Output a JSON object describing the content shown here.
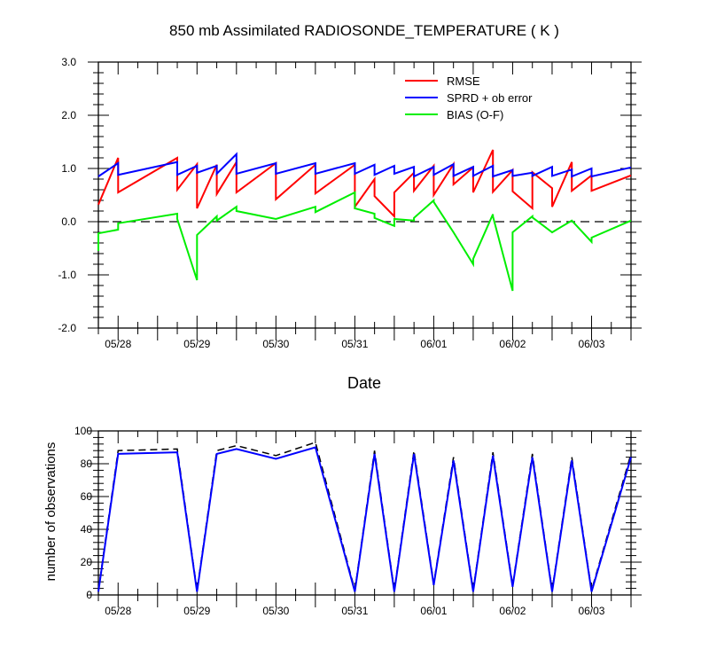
{
  "chart_data": [
    {
      "type": "line",
      "title": "850 mb Assimilated RADIOSONDE_TEMPERATURE ( K )",
      "xlabel": "Date",
      "ylabel": "",
      "ylim": [
        -2.0,
        3.0
      ],
      "yticks": [
        "-2.0",
        "-1.0",
        "0.0",
        "1.0",
        "2.0",
        "3.0"
      ],
      "x_tick_labels": [
        "05/28",
        "05/29",
        "05/30",
        "05/31",
        "06/01",
        "06/02",
        "06/03"
      ],
      "reference_line": 0.0,
      "legend_position": "top-right",
      "series": [
        {
          "name": "RMSE",
          "color": "#ff0000",
          "x": [
            "05/27 18Z",
            "05/28 00Z",
            "05/28 00Z",
            "05/28 18Z",
            "05/28 18Z",
            "05/29 00Z",
            "05/29 00Z",
            "05/29 06Z",
            "05/29 06Z",
            "05/29 12Z",
            "05/29 12Z",
            "05/30 00Z",
            "05/30 00Z",
            "05/30 12Z",
            "05/30 12Z",
            "05/31 00Z",
            "05/31 00Z",
            "05/31 06Z",
            "05/31 06Z",
            "05/31 12Z",
            "05/31 12Z",
            "05/31 18Z",
            "05/31 18Z",
            "06/01 00Z",
            "06/01 00Z",
            "06/01 06Z",
            "06/01 06Z",
            "06/01 12Z",
            "06/01 12Z",
            "06/01 18Z",
            "06/01 18Z",
            "06/02 00Z",
            "06/02 00Z",
            "06/02 06Z",
            "06/02 06Z",
            "06/02 12Z",
            "06/02 12Z",
            "06/02 18Z",
            "06/02 18Z",
            "06/03 00Z",
            "06/03 00Z",
            "06/03 12Z"
          ],
          "values": [
            0.32,
            1.2,
            0.55,
            1.2,
            0.6,
            1.08,
            0.25,
            1.07,
            0.52,
            1.12,
            0.55,
            1.1,
            0.42,
            1.07,
            0.53,
            1.07,
            0.28,
            0.8,
            0.48,
            0.1,
            0.55,
            0.92,
            0.58,
            1.05,
            0.5,
            1.08,
            0.7,
            1.02,
            0.55,
            1.35,
            0.56,
            0.97,
            0.57,
            0.25,
            0.93,
            0.63,
            0.28,
            1.12,
            0.58,
            0.87,
            0.58,
            0.87
          ]
        },
        {
          "name": "SPRD + ob error",
          "color": "#0000ff",
          "x": [
            "05/27 18Z",
            "05/28 00Z",
            "05/28 00Z",
            "05/28 18Z",
            "05/28 18Z",
            "05/29 00Z",
            "05/29 00Z",
            "05/29 06Z",
            "05/29 06Z",
            "05/29 12Z",
            "05/29 12Z",
            "05/30 00Z",
            "05/30 00Z",
            "05/30 12Z",
            "05/30 12Z",
            "05/31 00Z",
            "05/31 00Z",
            "05/31 06Z",
            "05/31 06Z",
            "05/31 12Z",
            "05/31 12Z",
            "05/31 18Z",
            "05/31 18Z",
            "06/01 00Z",
            "06/01 00Z",
            "06/01 06Z",
            "06/01 06Z",
            "06/01 12Z",
            "06/01 12Z",
            "06/01 18Z",
            "06/01 18Z",
            "06/02 00Z",
            "06/02 00Z",
            "06/02 06Z",
            "06/02 06Z",
            "06/02 12Z",
            "06/02 12Z",
            "06/02 18Z",
            "06/02 18Z",
            "06/03 00Z",
            "06/03 00Z",
            "06/03 12Z"
          ],
          "values": [
            0.85,
            1.1,
            0.88,
            1.12,
            0.88,
            1.05,
            0.92,
            1.05,
            0.9,
            1.27,
            0.9,
            1.1,
            0.9,
            1.1,
            0.9,
            1.1,
            0.9,
            1.07,
            0.88,
            1.05,
            0.9,
            1.03,
            0.85,
            1.03,
            0.88,
            1.08,
            0.86,
            1.03,
            0.86,
            1.05,
            0.85,
            0.97,
            0.86,
            0.92,
            0.86,
            1.03,
            0.86,
            0.98,
            0.85,
            1.0,
            0.85,
            1.02
          ]
        },
        {
          "name": "BIAS (O-F)",
          "color": "#00ee00",
          "x": [
            "05/27 18Z",
            "05/27 18Z",
            "05/28 00Z",
            "05/28 00Z",
            "05/28 18Z",
            "05/28 18Z",
            "05/29 00Z",
            "05/29 00Z",
            "05/29 06Z",
            "05/29 06Z",
            "05/29 12Z",
            "05/29 12Z",
            "05/30 00Z",
            "05/30 00Z",
            "05/30 12Z",
            "05/30 12Z",
            "05/31 00Z",
            "05/31 00Z",
            "05/31 06Z",
            "05/31 06Z",
            "05/31 12Z",
            "05/31 12Z",
            "05/31 18Z",
            "05/31 18Z",
            "06/01 00Z",
            "06/01 00Z",
            "06/01 06Z",
            "06/01 06Z",
            "06/01 12Z",
            "06/01 12Z",
            "06/01 18Z",
            "06/01 18Z",
            "06/02 00Z",
            "06/02 00Z",
            "06/02 06Z",
            "06/02 06Z",
            "06/02 12Z",
            "06/02 12Z",
            "06/02 18Z",
            "06/02 18Z",
            "06/03 00Z",
            "06/03 00Z",
            "06/03 12Z"
          ],
          "values": [
            -0.55,
            -0.22,
            -0.15,
            -0.03,
            0.15,
            0.05,
            -1.1,
            -0.25,
            0.1,
            0.02,
            0.28,
            0.2,
            0.05,
            0.05,
            0.28,
            0.18,
            0.55,
            0.25,
            0.15,
            0.07,
            -0.08,
            0.05,
            0.02,
            0.07,
            0.4,
            0.37,
            -0.2,
            -0.2,
            -0.8,
            -0.7,
            0.14,
            0.1,
            -1.3,
            -0.2,
            0.1,
            0.08,
            -0.2,
            -0.2,
            0.02,
            0.02,
            -0.38,
            -0.3,
            0.02
          ]
        }
      ]
    },
    {
      "type": "line",
      "title": "",
      "xlabel": "",
      "ylabel": "number of observations",
      "ylim": [
        0,
        100
      ],
      "yticks": [
        "0",
        "20",
        "40",
        "60",
        "80",
        "100"
      ],
      "x_tick_labels": [
        "05/28",
        "05/29",
        "05/30",
        "05/31",
        "06/01",
        "06/02",
        "06/03"
      ],
      "series": [
        {
          "name": "",
          "color": "#000000",
          "dash": true,
          "x": [
            "05/27 18Z",
            "05/28 00Z",
            "05/28 18Z",
            "05/29 00Z",
            "05/29 06Z",
            "05/29 12Z",
            "05/30 00Z",
            "05/30 12Z",
            "05/31 00Z",
            "05/31 06Z",
            "05/31 12Z",
            "05/31 18Z",
            "06/01 00Z",
            "06/01 06Z",
            "06/01 12Z",
            "06/01 18Z",
            "06/02 00Z",
            "06/02 06Z",
            "06/02 12Z",
            "06/02 18Z",
            "06/03 00Z",
            "06/03 12Z"
          ],
          "values": [
            3,
            88,
            89,
            3,
            88,
            91,
            85,
            93,
            3,
            88,
            3,
            88,
            7,
            84,
            3,
            87,
            6,
            86,
            3,
            84,
            3,
            86
          ]
        },
        {
          "name": "",
          "color": "#0000ff",
          "dash": false,
          "x": [
            "05/27 18Z",
            "05/28 00Z",
            "05/28 18Z",
            "05/29 00Z",
            "05/29 06Z",
            "05/29 12Z",
            "05/30 00Z",
            "05/30 12Z",
            "05/31 00Z",
            "05/31 06Z",
            "05/31 12Z",
            "05/31 18Z",
            "06/01 00Z",
            "06/01 06Z",
            "06/01 12Z",
            "06/01 18Z",
            "06/02 00Z",
            "06/02 06Z",
            "06/02 12Z",
            "06/02 18Z",
            "06/03 00Z",
            "06/03 12Z"
          ],
          "values": [
            2,
            86,
            87,
            2,
            86,
            89,
            83,
            90,
            2,
            86,
            2,
            86,
            6,
            82,
            2,
            85,
            5,
            84,
            2,
            82,
            2,
            84
          ]
        }
      ]
    }
  ]
}
